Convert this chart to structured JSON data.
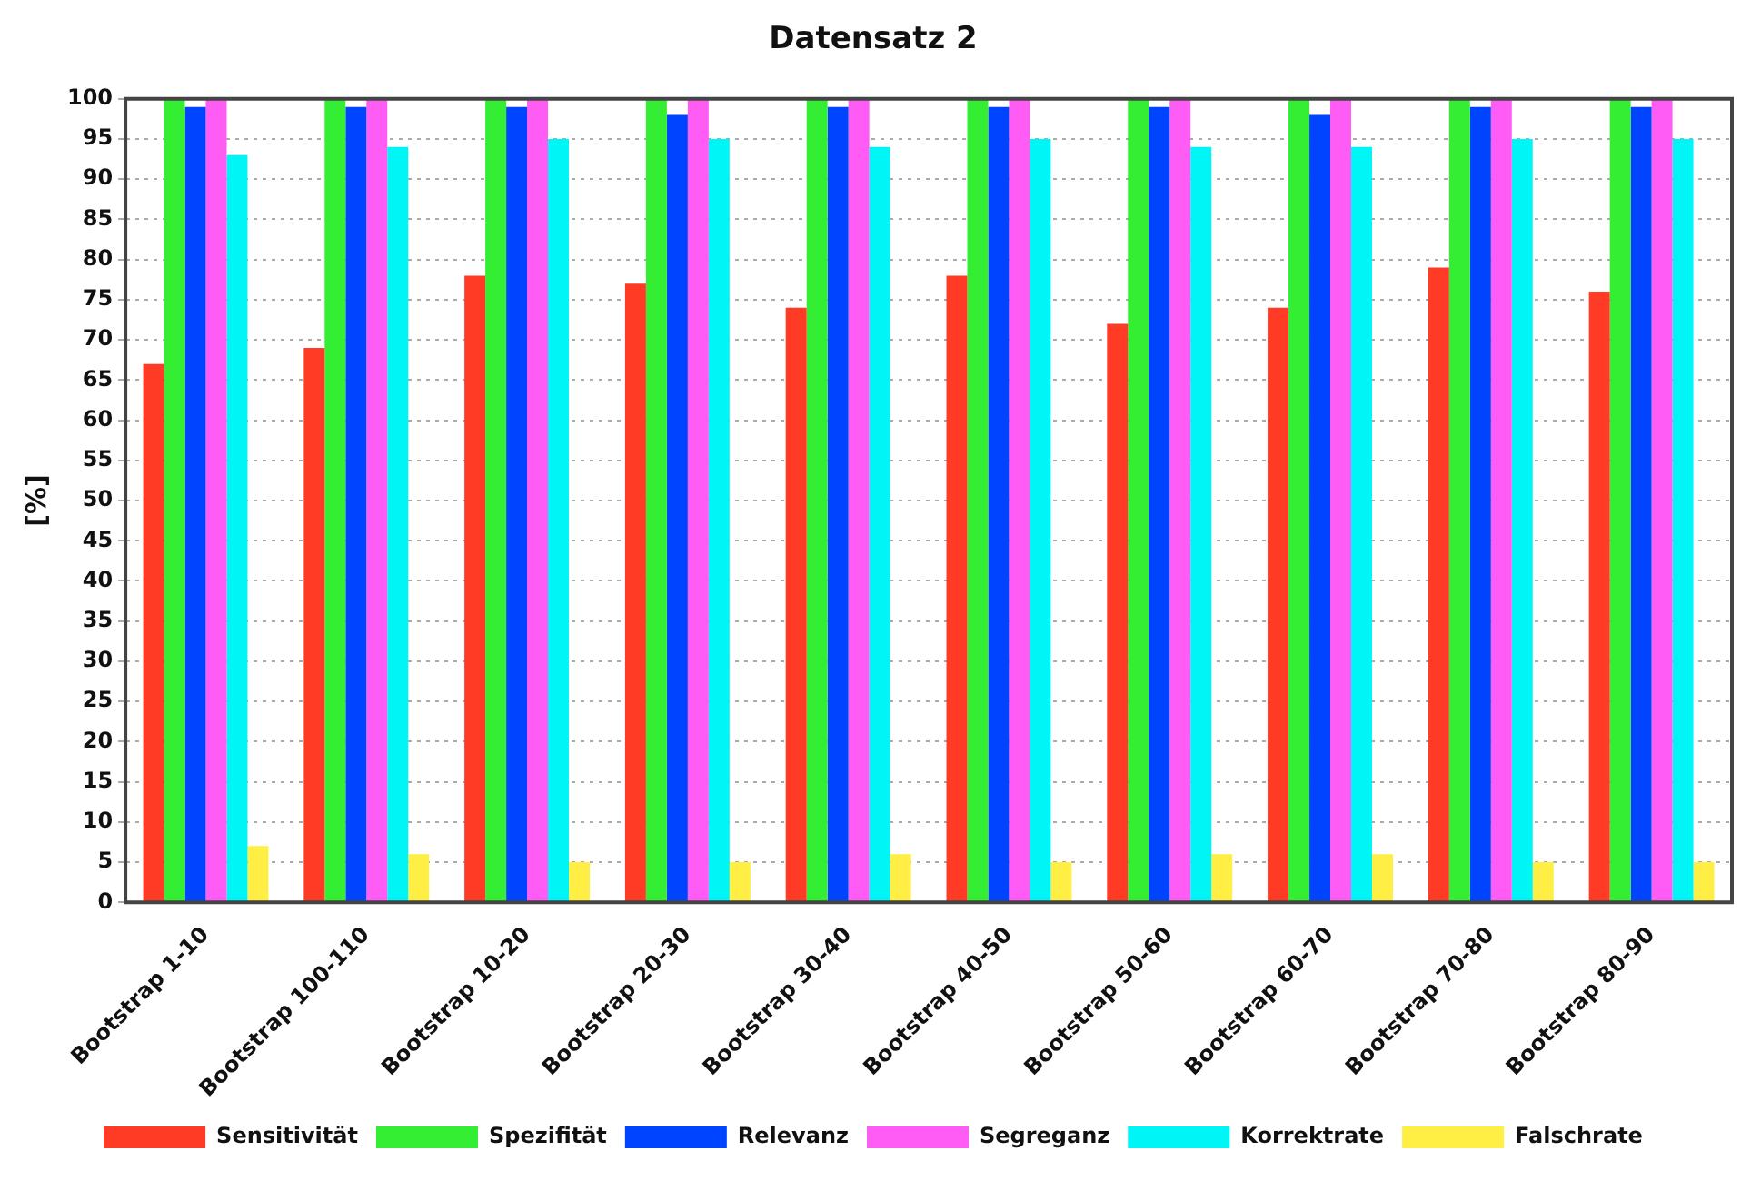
{
  "chart_data": {
    "type": "bar",
    "title": "Datensatz 2",
    "ylabel": "[%]",
    "categories": [
      "Bootstrap 1-10",
      "Bootstrap 100-110",
      "Bootstrap 10-20",
      "Bootstrap 20-30",
      "Bootstrap 30-40",
      "Bootstrap 40-50",
      "Bootstrap 50-60",
      "Bootstrap 60-70",
      "Bootstrap 70-80",
      "Bootstrap 80-90"
    ],
    "series": [
      {
        "name": "Sensitivität",
        "color": "#ff3b26",
        "values": [
          67,
          69,
          78,
          77,
          74,
          78,
          72,
          74,
          79,
          76
        ]
      },
      {
        "name": "Spezifität",
        "color": "#33ee33",
        "values": [
          100,
          100,
          100,
          100,
          100,
          100,
          100,
          100,
          100,
          100
        ]
      },
      {
        "name": "Relevanz",
        "color": "#0044ff",
        "values": [
          99,
          99,
          99,
          98,
          99,
          99,
          99,
          98,
          99,
          99
        ]
      },
      {
        "name": "Segreganz",
        "color": "#ff5cf6",
        "values": [
          100,
          100,
          100,
          100,
          100,
          100,
          100,
          100,
          100,
          100
        ]
      },
      {
        "name": "Korrektrate",
        "color": "#00f6f6",
        "values": [
          93,
          94,
          95,
          95,
          94,
          95,
          94,
          94,
          95,
          95
        ]
      },
      {
        "name": "Falschrate",
        "color": "#ffee44",
        "values": [
          7,
          6,
          5,
          5,
          6,
          5,
          6,
          6,
          5,
          5
        ]
      }
    ],
    "ylim": [
      0,
      100
    ],
    "yticks": [
      0,
      5,
      10,
      15,
      20,
      25,
      30,
      35,
      40,
      45,
      50,
      55,
      60,
      65,
      70,
      75,
      80,
      85,
      90,
      95,
      100
    ],
    "grid": "y",
    "legend": "bottom"
  }
}
